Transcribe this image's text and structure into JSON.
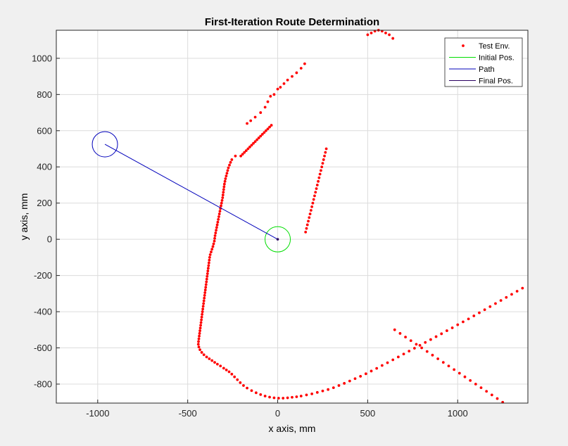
{
  "chart_data": {
    "type": "scatter",
    "title": "First-Iteration Route Determination",
    "xlabel": "x axis, mm",
    "ylabel": "y axis, mm",
    "xlim": [
      -1230,
      1390
    ],
    "ylim": [
      -905,
      1155
    ],
    "xticks": [
      -1000,
      -500,
      0,
      500,
      1000
    ],
    "yticks": [
      -800,
      -600,
      -400,
      -200,
      0,
      200,
      400,
      600,
      800,
      1000
    ],
    "xtick_labels": [
      "-1000",
      "-500",
      "0",
      "500",
      "1000"
    ],
    "ytick_labels": [
      "-800",
      "-600",
      "-400",
      "-200",
      "0",
      "200",
      "400",
      "600",
      "800",
      "1000"
    ],
    "grid": true,
    "legend_position": "top-right",
    "colors": {
      "test_env": "#ff0000",
      "initial_pos": "#00dd00",
      "path": "#0000bb",
      "final_pos": "#2a0060",
      "grid": "#dcdcdc",
      "axes_background": "#ffffff",
      "figure_background": "#f0f0f0"
    },
    "series": [
      {
        "name": "Test Env.",
        "marker": "dot",
        "points": [
          [
            -170,
            640
          ],
          [
            -150,
            655
          ],
          [
            -125,
            675
          ],
          [
            -95,
            700
          ],
          [
            -70,
            730
          ],
          [
            -55,
            760
          ],
          [
            -40,
            790
          ],
          [
            -20,
            800
          ],
          [
            0,
            830
          ],
          [
            15,
            840
          ],
          [
            35,
            860
          ],
          [
            55,
            880
          ],
          [
            80,
            900
          ],
          [
            105,
            920
          ],
          [
            130,
            945
          ],
          [
            150,
            970
          ],
          [
            -235,
            460
          ],
          [
            -255,
            440
          ],
          [
            -262,
            425
          ],
          [
            -268,
            410
          ],
          [
            -274,
            395
          ],
          [
            -278,
            380
          ],
          [
            -282,
            365
          ],
          [
            -286,
            350
          ],
          [
            -290,
            335
          ],
          [
            -293,
            320
          ],
          [
            -296,
            305
          ],
          [
            -298,
            290
          ],
          [
            -300,
            275
          ],
          [
            -302,
            260
          ],
          [
            -304,
            245
          ],
          [
            -306,
            230
          ],
          [
            -309,
            215
          ],
          [
            -312,
            200
          ],
          [
            -315,
            185
          ],
          [
            -318,
            170
          ],
          [
            -321,
            155
          ],
          [
            -324,
            140
          ],
          [
            -327,
            125
          ],
          [
            -330,
            110
          ],
          [
            -333,
            95
          ],
          [
            -336,
            80
          ],
          [
            -339,
            65
          ],
          [
            -342,
            50
          ],
          [
            -345,
            35
          ],
          [
            -348,
            20
          ],
          [
            -350,
            5
          ],
          [
            -352,
            -10
          ],
          [
            -356,
            -25
          ],
          [
            -360,
            -40
          ],
          [
            -365,
            -55
          ],
          [
            -370,
            -70
          ],
          [
            -375,
            -85
          ],
          [
            -378,
            -100
          ],
          [
            -380,
            -115
          ],
          [
            -382,
            -130
          ],
          [
            -384,
            -145
          ],
          [
            -386,
            -160
          ],
          [
            -388,
            -175
          ],
          [
            -390,
            -190
          ],
          [
            -392,
            -205
          ],
          [
            -394,
            -220
          ],
          [
            -396,
            -235
          ],
          [
            -398,
            -250
          ],
          [
            -400,
            -265
          ],
          [
            -402,
            -280
          ],
          [
            -404,
            -295
          ],
          [
            -406,
            -310
          ],
          [
            -408,
            -325
          ],
          [
            -410,
            -340
          ],
          [
            -412,
            -355
          ],
          [
            -414,
            -370
          ],
          [
            -416,
            -385
          ],
          [
            -418,
            -400
          ],
          [
            -420,
            -415
          ],
          [
            -422,
            -430
          ],
          [
            -424,
            -445
          ],
          [
            -426,
            -460
          ],
          [
            -428,
            -475
          ],
          [
            -430,
            -490
          ],
          [
            -432,
            -505
          ],
          [
            -434,
            -520
          ],
          [
            -436,
            -535
          ],
          [
            -438,
            -550
          ],
          [
            -440,
            -565
          ],
          [
            -441,
            -580
          ],
          [
            -438,
            -595
          ],
          [
            -432,
            -610
          ],
          [
            -422,
            -625
          ],
          [
            -410,
            -638
          ],
          [
            -395,
            -650
          ],
          [
            -380,
            -660
          ],
          [
            -365,
            -670
          ],
          [
            -350,
            -680
          ],
          [
            -335,
            -690
          ],
          [
            -318,
            -700
          ],
          [
            -300,
            -712
          ],
          [
            -285,
            -722
          ],
          [
            -270,
            -732
          ],
          [
            -255,
            -745
          ],
          [
            -240,
            -760
          ],
          [
            -224,
            -776
          ],
          [
            -208,
            -792
          ],
          [
            -190,
            -808
          ],
          [
            -170,
            -822
          ],
          [
            -145,
            -836
          ],
          [
            -120,
            -848
          ],
          [
            -95,
            -858
          ],
          [
            -70,
            -866
          ],
          [
            -45,
            -872
          ],
          [
            -20,
            -876
          ],
          [
            5,
            -878
          ],
          [
            30,
            -878
          ],
          [
            55,
            -876
          ],
          [
            80,
            -873
          ],
          [
            105,
            -870
          ],
          [
            130,
            -866
          ],
          [
            160,
            -860
          ],
          [
            190,
            -854
          ],
          [
            220,
            -846
          ],
          [
            250,
            -838
          ],
          [
            280,
            -830
          ],
          [
            310,
            -820
          ],
          [
            340,
            -808
          ],
          [
            370,
            -796
          ],
          [
            400,
            -783
          ],
          [
            430,
            -770
          ],
          [
            460,
            -757
          ],
          [
            490,
            -743
          ],
          [
            520,
            -728
          ],
          [
            550,
            -713
          ],
          [
            580,
            -697
          ],
          [
            610,
            -682
          ],
          [
            640,
            -666
          ],
          [
            670,
            -650
          ],
          [
            700,
            -634
          ],
          [
            730,
            -618
          ],
          [
            760,
            -602
          ],
          [
            790,
            -586
          ],
          [
            820,
            -570
          ],
          [
            850,
            -554
          ],
          [
            880,
            -538
          ],
          [
            910,
            -522
          ],
          [
            940,
            -505
          ],
          [
            970,
            -489
          ],
          [
            1000,
            -472
          ],
          [
            1030,
            -456
          ],
          [
            1060,
            -440
          ],
          [
            1090,
            -423
          ],
          [
            1120,
            -406
          ],
          [
            1150,
            -389
          ],
          [
            1180,
            -372
          ],
          [
            1210,
            -355
          ],
          [
            1240,
            -338
          ],
          [
            1270,
            -321
          ],
          [
            1300,
            -304
          ],
          [
            1330,
            -287
          ],
          [
            1360,
            -270
          ],
          [
            650,
            -500
          ],
          [
            680,
            -520
          ],
          [
            710,
            -540
          ],
          [
            740,
            -560
          ],
          [
            770,
            -580
          ],
          [
            800,
            -600
          ],
          [
            830,
            -620
          ],
          [
            860,
            -640
          ],
          [
            890,
            -660
          ],
          [
            920,
            -680
          ],
          [
            950,
            -700
          ],
          [
            980,
            -720
          ],
          [
            1010,
            -740
          ],
          [
            1040,
            -760
          ],
          [
            1070,
            -780
          ],
          [
            1100,
            -800
          ],
          [
            1130,
            -820
          ],
          [
            1160,
            -840
          ],
          [
            1190,
            -860
          ],
          [
            1220,
            -880
          ],
          [
            1250,
            -900
          ],
          [
            -205,
            460
          ],
          [
            -195,
            470
          ],
          [
            -185,
            480
          ],
          [
            -175,
            490
          ],
          [
            -165,
            500
          ],
          [
            -155,
            510
          ],
          [
            -145,
            520
          ],
          [
            -135,
            530
          ],
          [
            -125,
            540
          ],
          [
            -115,
            550
          ],
          [
            -105,
            560
          ],
          [
            -95,
            570
          ],
          [
            -85,
            580
          ],
          [
            -75,
            590
          ],
          [
            -65,
            600
          ],
          [
            -55,
            610
          ],
          [
            -45,
            620
          ],
          [
            -35,
            630
          ],
          [
            155,
            40
          ],
          [
            160,
            60
          ],
          [
            165,
            80
          ],
          [
            170,
            100
          ],
          [
            175,
            120
          ],
          [
            180,
            140
          ],
          [
            185,
            160
          ],
          [
            190,
            180
          ],
          [
            195,
            200
          ],
          [
            200,
            220
          ],
          [
            205,
            240
          ],
          [
            210,
            260
          ],
          [
            215,
            280
          ],
          [
            220,
            300
          ],
          [
            225,
            320
          ],
          [
            230,
            340
          ],
          [
            235,
            360
          ],
          [
            240,
            380
          ],
          [
            245,
            400
          ],
          [
            250,
            420
          ],
          [
            255,
            440
          ],
          [
            260,
            460
          ],
          [
            265,
            480
          ],
          [
            270,
            500
          ],
          [
            500,
            1130
          ],
          [
            520,
            1140
          ],
          [
            540,
            1150
          ],
          [
            560,
            1155
          ],
          [
            580,
            1150
          ],
          [
            600,
            1140
          ],
          [
            620,
            1130
          ],
          [
            640,
            1110
          ]
        ]
      },
      {
        "name": "Initial Pos.",
        "marker": "circle",
        "points": [
          [
            0,
            0
          ]
        ]
      },
      {
        "name": "Path",
        "marker": "line",
        "points": [
          [
            0,
            0
          ],
          [
            -960,
            525
          ]
        ]
      },
      {
        "name": "Final Pos.",
        "marker": "circle",
        "points": [
          [
            -960,
            525
          ]
        ]
      }
    ]
  }
}
